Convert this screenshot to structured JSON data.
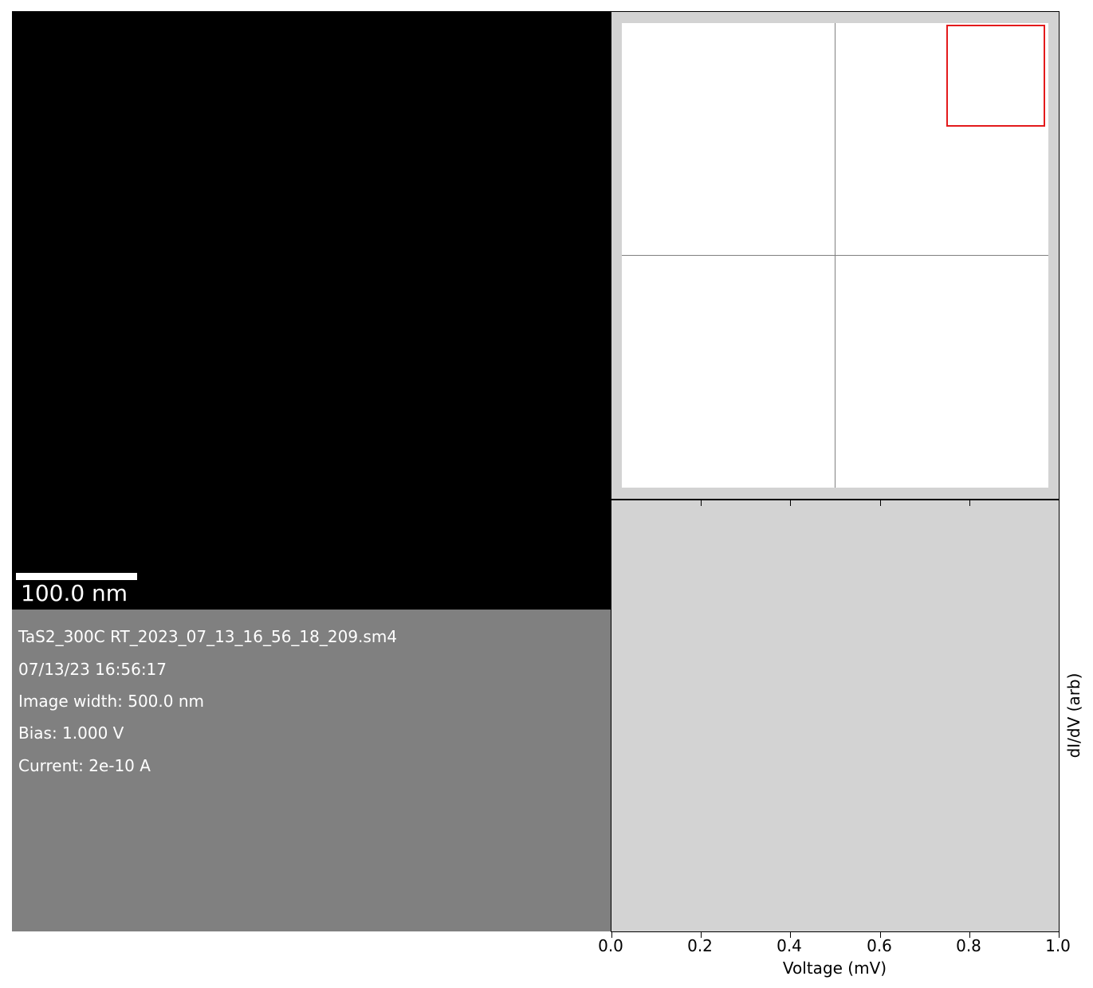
{
  "image": {
    "scalebar_label": "100.0 nm"
  },
  "info": {
    "lines": [
      "TaS2_300C RT_2023_07_13_16_56_18_209.sm4",
      "07/13/23 16:56:17",
      "Image width: 500.0 nm",
      "Bias: 1.000 V",
      "Current: 2e-10 A"
    ]
  },
  "navigator": {
    "roi_color": "#e31a1c",
    "background_color": "#d3d3d3"
  },
  "chart_data": {
    "type": "line",
    "xlabel": "Voltage (mV)",
    "ylabel": "dI/dV (arb)",
    "xlim": [
      0.0,
      1.0
    ],
    "x_ticks": [
      "0.0",
      "0.2",
      "0.4",
      "0.6",
      "0.8",
      "1.0"
    ],
    "series": []
  }
}
